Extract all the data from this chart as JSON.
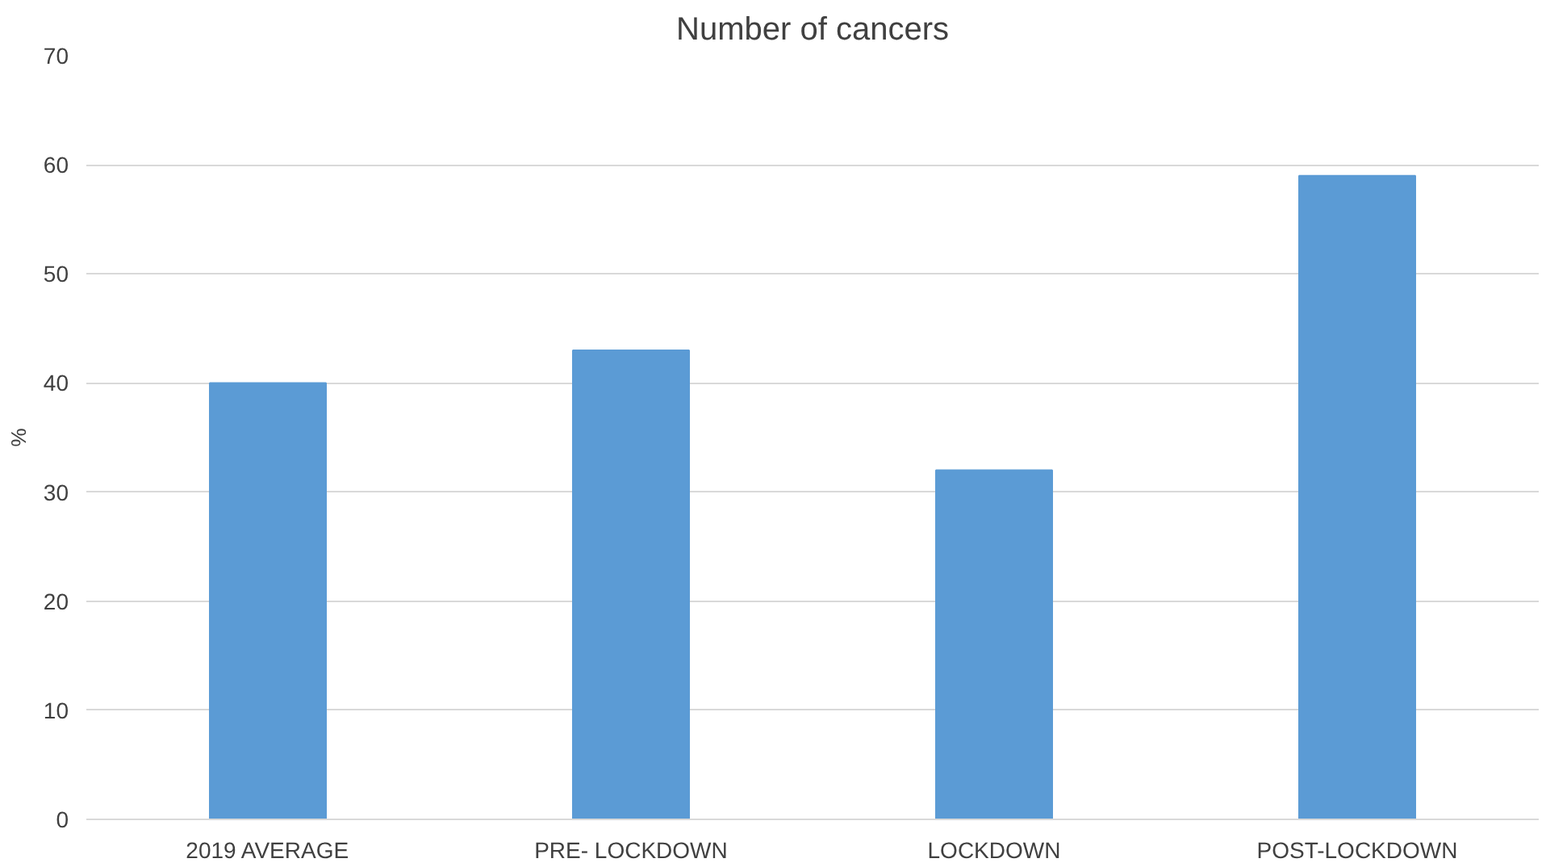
{
  "chart_data": {
    "type": "bar",
    "title": "Number of cancers",
    "ylabel": "%",
    "categories": [
      "2019 AVERAGE",
      "PRE- LOCKDOWN",
      "LOCKDOWN",
      "POST-LOCKDOWN"
    ],
    "values": [
      40,
      43,
      32,
      59
    ],
    "color": "#5b9bd5",
    "ylim": [
      0,
      70
    ],
    "yticks": [
      0,
      10,
      20,
      30,
      40,
      50,
      60,
      70
    ],
    "grid": "y"
  }
}
